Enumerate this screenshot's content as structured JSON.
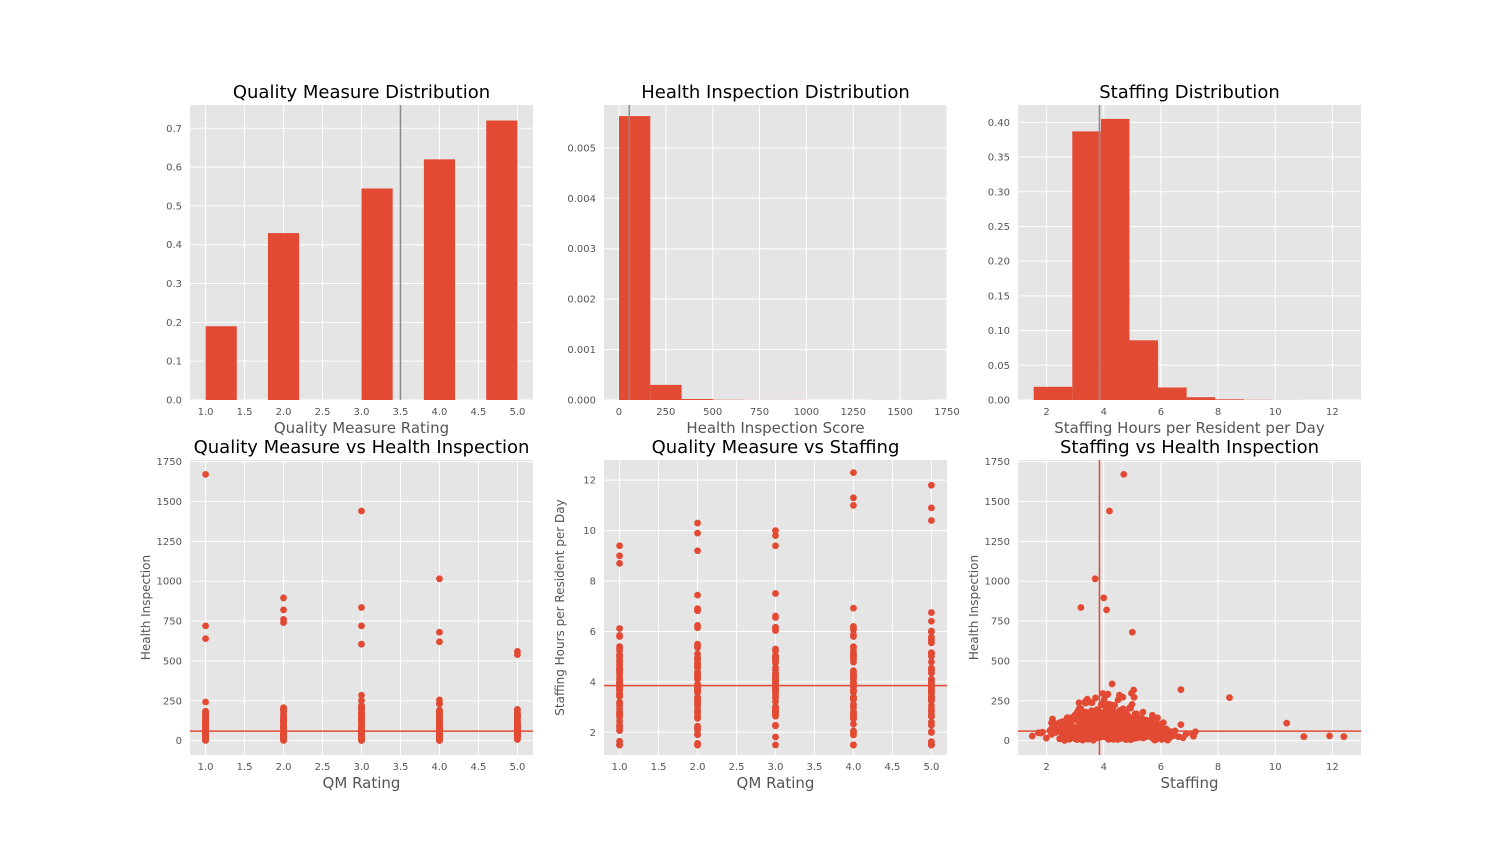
{
  "chart_data": [
    {
      "type": "bar",
      "title": "Quality Measure Distribution",
      "xlabel": "Quality Measure Rating",
      "ylabel": "",
      "xlim": [
        0.8,
        5.2
      ],
      "ylim": [
        0,
        0.76
      ],
      "xticks": [
        1.0,
        1.5,
        2.0,
        2.5,
        3.0,
        3.5,
        4.0,
        4.5,
        5.0
      ],
      "xtick_labels": [
        "1.0",
        "1.5",
        "2.0",
        "2.5",
        "3.0",
        "3.5",
        "4.0",
        "4.5",
        "5.0"
      ],
      "yticks": [
        0.0,
        0.1,
        0.2,
        0.3,
        0.4,
        0.5,
        0.6,
        0.7
      ],
      "ytick_labels": [
        "0.0",
        "0.1",
        "0.2",
        "0.3",
        "0.4",
        "0.5",
        "0.6",
        "0.7"
      ],
      "bins": [
        [
          1.0,
          1.4
        ],
        [
          1.8,
          2.2
        ],
        [
          3.0,
          3.4
        ],
        [
          3.4,
          3.8
        ],
        [
          4.6,
          5.0
        ]
      ],
      "bar_values": [
        [
          1.0,
          1.4,
          0.19
        ],
        [
          1.8,
          2.2,
          0.43
        ],
        [
          2.6,
          3.0,
          0.0
        ],
        [
          3.0,
          3.4,
          0.545
        ],
        [
          3.4,
          3.8,
          0.0
        ],
        [
          3.8,
          4.2,
          0.62
        ],
        [
          4.6,
          5.0,
          0.72
        ]
      ],
      "vline": 3.5,
      "grid": true
    },
    {
      "type": "bar",
      "title": "Health Inspection Distribution",
      "xlabel": "Health Inspection Score",
      "ylabel": "",
      "xlim": [
        -80,
        1750
      ],
      "ylim": [
        0,
        0.00585
      ],
      "xticks": [
        0,
        250,
        500,
        750,
        1000,
        1250,
        1500,
        1750
      ],
      "xtick_labels": [
        "0",
        "250",
        "500",
        "750",
        "1000",
        "1250",
        "1500",
        "1750"
      ],
      "yticks": [
        0.0,
        0.001,
        0.002,
        0.003,
        0.004,
        0.005
      ],
      "ytick_labels": [
        "0.000",
        "0.001",
        "0.002",
        "0.003",
        "0.004",
        "0.005"
      ],
      "bar_values": [
        [
          0,
          167,
          0.00563
        ],
        [
          167,
          334,
          0.0003
        ],
        [
          334,
          501,
          2e-05
        ],
        [
          501,
          668,
          5e-06
        ],
        [
          668,
          835,
          2e-06
        ],
        [
          835,
          1002,
          2e-06
        ],
        [
          1335,
          1502,
          1e-06
        ],
        [
          1502,
          1670,
          1e-06
        ]
      ],
      "vline": 55,
      "grid": true
    },
    {
      "type": "bar",
      "title": "Staffing Distribution",
      "xlabel": "Staffing Hours per Resident per Day",
      "ylabel": "",
      "xlim": [
        1.0,
        13.0
      ],
      "ylim": [
        0,
        0.425
      ],
      "xticks": [
        2,
        4,
        6,
        8,
        10,
        12
      ],
      "xtick_labels": [
        "2",
        "4",
        "6",
        "8",
        "10",
        "12"
      ],
      "yticks": [
        0.0,
        0.05,
        0.1,
        0.15,
        0.2,
        0.25,
        0.3,
        0.35,
        0.4
      ],
      "ytick_labels": [
        "0.00",
        "0.05",
        "0.10",
        "0.15",
        "0.20",
        "0.25",
        "0.30",
        "0.35",
        "0.40"
      ],
      "bar_values": [
        [
          1.6,
          2.95,
          0.019
        ],
        [
          2.95,
          3.95,
          0.387
        ],
        [
          3.95,
          4.1,
          0.0
        ],
        [
          3.95,
          4.28,
          0.405
        ],
        [
          2.95,
          3.95,
          0.387
        ]
      ],
      "vline": 3.85,
      "grid": true
    },
    {
      "type": "scatter",
      "title": "Quality Measure vs Health Inspection",
      "xlabel": "QM Rating",
      "ylabel": "Health Inspection",
      "xlim": [
        0.8,
        5.2
      ],
      "ylim": [
        -90,
        1760
      ],
      "xticks": [
        1.0,
        1.5,
        2.0,
        2.5,
        3.0,
        3.5,
        4.0,
        4.5,
        5.0
      ],
      "xtick_labels": [
        "1.0",
        "1.5",
        "2.0",
        "2.5",
        "3.0",
        "3.5",
        "4.0",
        "4.5",
        "5.0"
      ],
      "yticks": [
        0,
        250,
        500,
        750,
        1000,
        1250,
        1500,
        1750
      ],
      "ytick_labels": [
        "0",
        "250",
        "500",
        "750",
        "1000",
        "1250",
        "1500",
        "1750"
      ],
      "hline": 60,
      "grid": true
    },
    {
      "type": "scatter",
      "title": "Quality Measure vs Staffing",
      "xlabel": "QM Rating",
      "ylabel": "Staffing Hours per Resident per Day",
      "xlim": [
        0.8,
        5.2
      ],
      "ylim": [
        1.1,
        12.8
      ],
      "xticks": [
        1.0,
        1.5,
        2.0,
        2.5,
        3.0,
        3.5,
        4.0,
        4.5,
        5.0
      ],
      "xtick_labels": [
        "1.0",
        "1.5",
        "2.0",
        "2.5",
        "3.0",
        "3.5",
        "4.0",
        "4.5",
        "5.0"
      ],
      "yticks": [
        2,
        4,
        6,
        8,
        10,
        12
      ],
      "ytick_labels": [
        "2",
        "4",
        "6",
        "8",
        "10",
        "12"
      ],
      "hline": 3.85,
      "grid": true
    },
    {
      "type": "scatter",
      "title": "Staffing vs Health Inspection",
      "xlabel": "Staffing",
      "ylabel": "Health Inspection",
      "xlim": [
        1.0,
        13.0
      ],
      "ylim": [
        -90,
        1760
      ],
      "xticks": [
        2,
        4,
        6,
        8,
        10,
        12
      ],
      "xtick_labels": [
        "2",
        "4",
        "6",
        "8",
        "10",
        "12"
      ],
      "yticks": [
        0,
        250,
        500,
        750,
        1000,
        1250,
        1500,
        1750
      ],
      "ytick_labels": [
        "0",
        "250",
        "500",
        "750",
        "1000",
        "1250",
        "1500",
        "1750"
      ],
      "vline": 3.85,
      "hline": 60,
      "grid": true
    }
  ],
  "colors": {
    "background": "#e5e5e5",
    "grid": "#ffffff",
    "bar": "#e24a33",
    "marker": "#e24a33",
    "reference_line_hist": "#8c8c8c",
    "reference_line_scatter": "#e24a33"
  }
}
